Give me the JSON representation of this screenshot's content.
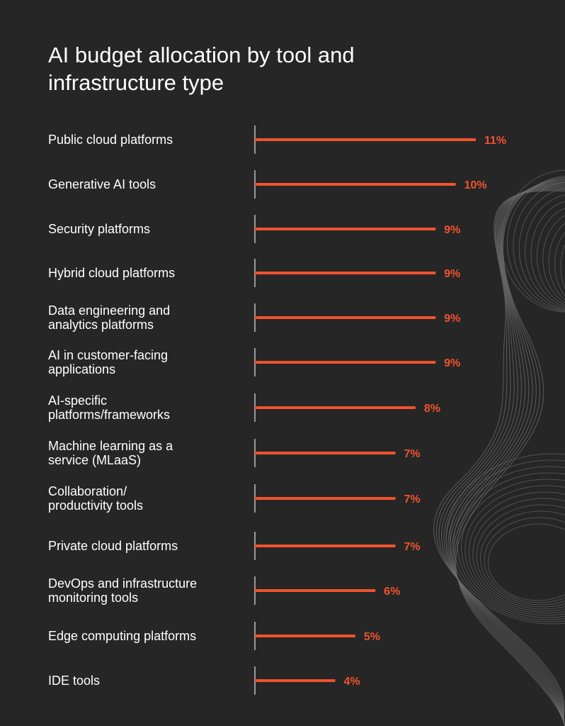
{
  "colors": {
    "background": "#262626",
    "text": "#ffffff",
    "bar": "#f0532e",
    "axis": "#e6e6e6",
    "decoration": "#6e6e6e"
  },
  "chart_data": {
    "type": "bar",
    "orientation": "horizontal",
    "title": "AI budget allocation by tool and infrastructure type",
    "categories": [
      [
        "Public cloud platforms"
      ],
      [
        "Generative AI tools"
      ],
      [
        "Security platforms"
      ],
      [
        "Hybrid cloud platforms"
      ],
      [
        "Data engineering and",
        "analytics platforms"
      ],
      [
        "AI in customer-facing",
        "applications"
      ],
      [
        "AI-specific",
        "platforms/frameworks"
      ],
      [
        "Machine learning as a",
        "service (MLaaS)"
      ],
      [
        "Collaboration/",
        "productivity tools"
      ],
      [
        "Private cloud platforms"
      ],
      [
        "DevOps and infrastructure",
        "monitoring tools"
      ],
      [
        "Edge computing platforms"
      ],
      [
        "IDE tools"
      ]
    ],
    "values": [
      11,
      10,
      9,
      9,
      9,
      9,
      8,
      7,
      7,
      7,
      6,
      5,
      4
    ],
    "value_labels": [
      "11%",
      "10%",
      "9%",
      "9%",
      "9%",
      "9%",
      "8%",
      "7%",
      "7%",
      "7%",
      "6%",
      "5%",
      "4%"
    ],
    "unit": "%",
    "xlim": [
      0,
      11
    ],
    "grid": false,
    "legend": "none"
  }
}
